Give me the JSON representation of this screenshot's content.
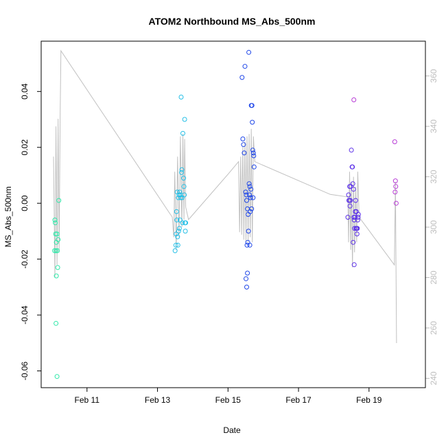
{
  "chart_data": {
    "type": "scatter",
    "title": "ATOM2 Northbound MS_Abs_500nm",
    "xlabel": "Date",
    "ylabel": "MS_Abs_500nm",
    "x_ticks": [
      {
        "label": "Feb 11",
        "value": 11
      },
      {
        "label": "Feb 13",
        "value": 13
      },
      {
        "label": "Feb 15",
        "value": 15
      },
      {
        "label": "Feb 17",
        "value": 17
      },
      {
        "label": "Feb 19",
        "value": 19
      }
    ],
    "xlim": [
      9.7,
      20.6
    ],
    "ylim": [
      -0.066,
      0.058
    ],
    "y_ticks": [
      "-0.06",
      "-0.04",
      "-0.02",
      "0.00",
      "0.02",
      "0.04"
    ],
    "y2lim": [
      236.3,
      373.8
    ],
    "y2_ticks": [
      "240",
      "260",
      "280",
      "300",
      "320",
      "340",
      "360"
    ],
    "secondary_axis_color": "#bdbdbd",
    "line_color": "#c0c0c0",
    "grid": false,
    "groups": [
      {
        "color": "#2ee8a8",
        "points": [
          [
            10.09,
            -0.006
          ],
          [
            10.1,
            -0.007
          ],
          [
            10.11,
            -0.011
          ],
          [
            10.12,
            -0.017
          ],
          [
            10.13,
            -0.014
          ],
          [
            10.15,
            -0.011
          ],
          [
            10.16,
            -0.017
          ],
          [
            10.18,
            -0.013
          ],
          [
            10.2,
            0.001
          ],
          [
            10.17,
            -0.023
          ],
          [
            10.13,
            -0.026
          ],
          [
            10.12,
            -0.043
          ],
          [
            10.15,
            -0.062
          ],
          [
            10.08,
            -0.017
          ]
        ]
      },
      {
        "color": "#25bfe6",
        "points": [
          [
            13.5,
            -0.017
          ],
          [
            13.52,
            -0.015
          ],
          [
            13.53,
            -0.011
          ],
          [
            13.55,
            -0.006
          ],
          [
            13.54,
            -0.003
          ],
          [
            13.57,
            -0.012
          ],
          [
            13.58,
            -0.015
          ],
          [
            13.6,
            -0.01
          ],
          [
            13.62,
            -0.009
          ],
          [
            13.63,
            0.004
          ],
          [
            13.65,
            0.003
          ],
          [
            13.66,
            0.002
          ],
          [
            13.68,
            0.011
          ],
          [
            13.69,
            0.012
          ],
          [
            13.67,
            0.038
          ],
          [
            13.72,
            0.025
          ],
          [
            13.74,
            0.009
          ],
          [
            13.75,
            0.006
          ],
          [
            13.76,
            0.003
          ],
          [
            13.77,
            0.03
          ],
          [
            13.78,
            -0.007
          ],
          [
            13.79,
            -0.01
          ],
          [
            13.8,
            -0.007
          ],
          [
            13.71,
            -0.007
          ],
          [
            13.64,
            -0.006
          ],
          [
            13.7,
            0.002
          ],
          [
            13.59,
            0.002
          ],
          [
            13.56,
            0.004
          ],
          [
            13.61,
            0.003
          ]
        ]
      },
      {
        "color": "#1d45e8",
        "points": [
          [
            15.4,
            0.045
          ],
          [
            15.42,
            0.023
          ],
          [
            15.44,
            0.021
          ],
          [
            15.46,
            0.018
          ],
          [
            15.48,
            0.049
          ],
          [
            15.5,
            0.004
          ],
          [
            15.52,
            0.003
          ],
          [
            15.53,
            0.001
          ],
          [
            15.55,
            -0.002
          ],
          [
            15.57,
            -0.004
          ],
          [
            15.59,
            0.054
          ],
          [
            15.6,
            0.007
          ],
          [
            15.62,
            0.006
          ],
          [
            15.63,
            -0.003
          ],
          [
            15.65,
            0.005
          ],
          [
            15.66,
            0.035
          ],
          [
            15.68,
            0.035
          ],
          [
            15.69,
            0.029
          ],
          [
            15.7,
            0.019
          ],
          [
            15.72,
            0.018
          ],
          [
            15.73,
            0.017
          ],
          [
            15.74,
            0.013
          ],
          [
            15.71,
            0.002
          ],
          [
            15.67,
            -0.002
          ],
          [
            15.64,
            0.002
          ],
          [
            15.61,
            0.003
          ],
          [
            15.58,
            -0.01
          ],
          [
            15.56,
            -0.014
          ],
          [
            15.54,
            -0.015
          ],
          [
            15.51,
            -0.027
          ],
          [
            15.55,
            -0.025
          ],
          [
            15.53,
            -0.03
          ],
          [
            15.62,
            -0.015
          ]
        ]
      },
      {
        "color": "#5b2fe8",
        "points": [
          [
            18.4,
            -0.005
          ],
          [
            18.42,
            0.003
          ],
          [
            18.44,
            0.001
          ],
          [
            18.46,
            -0.001
          ],
          [
            18.48,
            0.006
          ],
          [
            18.5,
            0.019
          ],
          [
            18.52,
            0.013
          ],
          [
            18.53,
            0.013
          ],
          [
            18.54,
            0.007
          ],
          [
            18.56,
            0.005
          ],
          [
            18.57,
            -0.005
          ],
          [
            18.58,
            -0.006
          ],
          [
            18.59,
            -0.009
          ],
          [
            18.6,
            -0.005
          ],
          [
            18.61,
            -0.003
          ],
          [
            18.62,
            0.001
          ],
          [
            18.63,
            -0.009
          ],
          [
            18.64,
            -0.003
          ],
          [
            18.65,
            -0.009
          ],
          [
            18.66,
            -0.011
          ],
          [
            18.67,
            -0.009
          ],
          [
            18.68,
            -0.006
          ],
          [
            18.69,
            -0.005
          ],
          [
            18.7,
            -0.004
          ],
          [
            18.55,
            -0.014
          ],
          [
            18.58,
            -0.022
          ],
          [
            18.45,
            0.006
          ],
          [
            18.43,
            0.001
          ],
          [
            18.47,
            0.001
          ]
        ]
      },
      {
        "color": "#b83cd6",
        "points": [
          [
            18.57,
            0.037
          ],
          [
            19.73,
            0.022
          ],
          [
            19.75,
            0.008
          ],
          [
            19.76,
            0.006
          ],
          [
            19.74,
            0.004
          ],
          [
            19.77,
            0.0
          ]
        ]
      }
    ],
    "line_series": [
      [
        10.05,
        328
      ],
      [
        10.09,
        280
      ],
      [
        10.12,
        340
      ],
      [
        10.15,
        285
      ],
      [
        10.18,
        343
      ],
      [
        10.21,
        290
      ],
      [
        10.24,
        345
      ],
      [
        10.26,
        370
      ],
      [
        13.32,
        306
      ],
      [
        13.42,
        304
      ],
      [
        13.46,
        296
      ],
      [
        13.49,
        322
      ],
      [
        13.53,
        291
      ],
      [
        13.57,
        328
      ],
      [
        13.61,
        296
      ],
      [
        13.65,
        336
      ],
      [
        13.69,
        300
      ],
      [
        13.72,
        337
      ],
      [
        13.75,
        303
      ],
      [
        13.77,
        335
      ],
      [
        13.8,
        308
      ],
      [
        13.88,
        303
      ],
      [
        15.0,
        321
      ],
      [
        15.3,
        326
      ],
      [
        15.33,
        298
      ],
      [
        15.36,
        328
      ],
      [
        15.39,
        297
      ],
      [
        15.42,
        332
      ],
      [
        15.45,
        295
      ],
      [
        15.48,
        334
      ],
      [
        15.51,
        294
      ],
      [
        15.54,
        336
      ],
      [
        15.57,
        294
      ],
      [
        15.6,
        337
      ],
      [
        15.63,
        296
      ],
      [
        15.66,
        339
      ],
      [
        15.69,
        294
      ],
      [
        15.72,
        336
      ],
      [
        15.76,
        326
      ],
      [
        17.9,
        313
      ],
      [
        18.4,
        312
      ],
      [
        18.42,
        294
      ],
      [
        18.45,
        322
      ],
      [
        18.48,
        291
      ],
      [
        18.5,
        318
      ],
      [
        18.53,
        284
      ],
      [
        18.56,
        320
      ],
      [
        18.59,
        290
      ],
      [
        18.62,
        316
      ],
      [
        18.65,
        294
      ],
      [
        18.68,
        322
      ],
      [
        18.72,
        304
      ],
      [
        19.72,
        285
      ],
      [
        19.75,
        318
      ],
      [
        19.78,
        254
      ]
    ]
  }
}
